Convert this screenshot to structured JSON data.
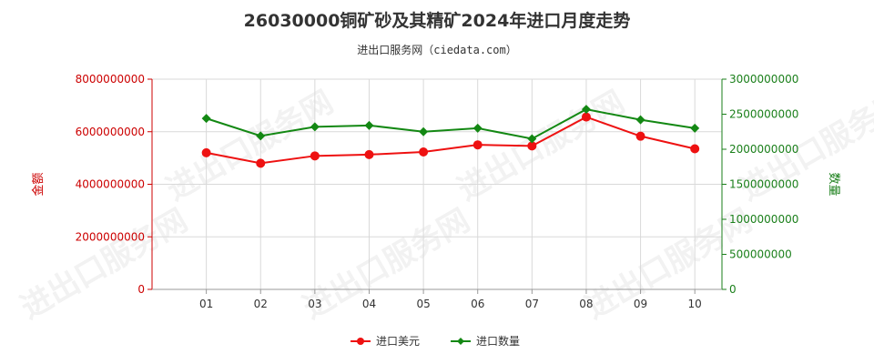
{
  "header": {
    "title": "26030000铜矿砂及其精矿2024年进口月度走势",
    "subtitle": "进出口服务网（ciedata.com）"
  },
  "watermark": "进出口服务网",
  "chart_data": {
    "type": "line",
    "categories": [
      "01",
      "02",
      "03",
      "04",
      "05",
      "06",
      "07",
      "08",
      "09",
      "10"
    ],
    "ylabel_left": "金额",
    "ylabel_right": "数量",
    "ylim_left": [
      0,
      8000000000
    ],
    "ylim_right": [
      0,
      3000000000
    ],
    "yticks_left": [
      "0",
      "2000000000",
      "4000000000",
      "6000000000",
      "8000000000"
    ],
    "yticks_right": [
      "0",
      "500000000",
      "1000000000",
      "1500000000",
      "2000000000",
      "2500000000",
      "3000000000"
    ],
    "grid": true,
    "legend_position": "bottom",
    "series": [
      {
        "name": "进口美元",
        "axis": "left",
        "color": "#ee1111",
        "marker": "circle",
        "values": [
          5200000000,
          4800000000,
          5080000000,
          5130000000,
          5230000000,
          5500000000,
          5460000000,
          6560000000,
          5830000000,
          5350000000
        ]
      },
      {
        "name": "进口数量",
        "axis": "right",
        "color": "#138813",
        "marker": "diamond",
        "values": [
          2440000000,
          2190000000,
          2320000000,
          2340000000,
          2250000000,
          2300000000,
          2150000000,
          2570000000,
          2420000000,
          2300000000
        ]
      }
    ]
  }
}
